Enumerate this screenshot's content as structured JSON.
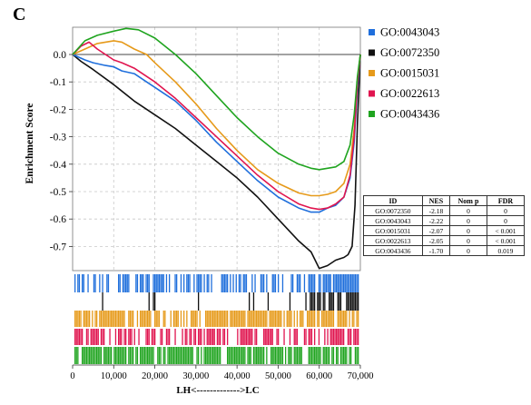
{
  "panel_label": "C",
  "chart_data": {
    "type": "line",
    "ylabel": "Enrichment Score",
    "xlabel": "LH<------------->LC",
    "xlim": [
      0,
      70000
    ],
    "ylim": [
      -0.8,
      0.1
    ],
    "y_ticks": [
      0.0,
      -0.1,
      -0.2,
      -0.3,
      -0.4,
      -0.5,
      -0.6,
      -0.7
    ],
    "y_tick_labels": [
      "0.0",
      "-0.1",
      "-0.2",
      "-0.3",
      "-0.4",
      "-0.5",
      "-0.6",
      "-0.7"
    ],
    "x_ticks": [
      0,
      10000,
      20000,
      30000,
      40000,
      50000,
      60000,
      70000
    ],
    "x_tick_labels": [
      "0",
      "10,000",
      "20,000",
      "30,000",
      "40,000",
      "50,000",
      "60,000",
      "70,000"
    ],
    "grid": true,
    "legend_position": "right",
    "series": [
      {
        "name": "GO:0043043",
        "color": "#1f6fdc",
        "x": [
          0,
          3000,
          5000,
          8000,
          10000,
          12000,
          15000,
          18000,
          20000,
          25000,
          30000,
          35000,
          40000,
          45000,
          50000,
          55000,
          58000,
          60000,
          62000,
          64000,
          66000,
          67500,
          68500,
          69300,
          70000
        ],
        "y": [
          0.0,
          -0.02,
          -0.03,
          -0.04,
          -0.045,
          -0.06,
          -0.07,
          -0.1,
          -0.12,
          -0.17,
          -0.24,
          -0.32,
          -0.39,
          -0.46,
          -0.52,
          -0.56,
          -0.575,
          -0.575,
          -0.56,
          -0.55,
          -0.52,
          -0.45,
          -0.32,
          -0.12,
          0.0
        ]
      },
      {
        "name": "GO:0072350",
        "color": "#111111",
        "x": [
          0,
          2000,
          5000,
          10000,
          15000,
          20000,
          25000,
          30000,
          35000,
          40000,
          45000,
          50000,
          55000,
          58000,
          60000,
          62000,
          64000,
          66000,
          67000,
          68000,
          68700,
          69300,
          70000
        ],
        "y": [
          0.0,
          -0.025,
          -0.055,
          -0.11,
          -0.17,
          -0.22,
          -0.27,
          -0.33,
          -0.39,
          -0.45,
          -0.52,
          -0.6,
          -0.68,
          -0.72,
          -0.78,
          -0.77,
          -0.75,
          -0.74,
          -0.73,
          -0.7,
          -0.55,
          -0.25,
          0.0
        ]
      },
      {
        "name": "GO:0015031",
        "color": "#e69a1a",
        "x": [
          0,
          3000,
          6000,
          8000,
          10000,
          12000,
          15000,
          18000,
          20000,
          25000,
          30000,
          35000,
          40000,
          45000,
          50000,
          55000,
          58000,
          60000,
          62000,
          64000,
          66000,
          67500,
          68500,
          69300,
          70000
        ],
        "y": [
          0.0,
          0.02,
          0.04,
          0.045,
          0.05,
          0.045,
          0.02,
          0.0,
          -0.03,
          -0.1,
          -0.18,
          -0.27,
          -0.35,
          -0.42,
          -0.47,
          -0.505,
          -0.515,
          -0.515,
          -0.51,
          -0.5,
          -0.47,
          -0.4,
          -0.27,
          -0.1,
          0.0
        ]
      },
      {
        "name": "GO:0022613",
        "color": "#e0154f",
        "x": [
          0,
          2000,
          4000,
          6000,
          8000,
          10000,
          12000,
          15000,
          20000,
          25000,
          30000,
          35000,
          40000,
          45000,
          50000,
          55000,
          58000,
          60000,
          62000,
          64000,
          66000,
          67500,
          68500,
          69300,
          70000
        ],
        "y": [
          0.0,
          0.03,
          0.045,
          0.02,
          0.0,
          -0.02,
          -0.03,
          -0.05,
          -0.1,
          -0.16,
          -0.23,
          -0.3,
          -0.37,
          -0.44,
          -0.5,
          -0.545,
          -0.56,
          -0.565,
          -0.56,
          -0.545,
          -0.52,
          -0.44,
          -0.3,
          -0.1,
          0.0
        ]
      },
      {
        "name": "GO:0043436",
        "color": "#1fa41f",
        "x": [
          0,
          3000,
          6000,
          10000,
          13000,
          16000,
          20000,
          25000,
          30000,
          35000,
          40000,
          45000,
          50000,
          55000,
          58000,
          60000,
          62000,
          64000,
          66000,
          67500,
          68500,
          69300,
          70000
        ],
        "y": [
          0.0,
          0.05,
          0.07,
          0.085,
          0.095,
          0.09,
          0.06,
          0.0,
          -0.07,
          -0.15,
          -0.23,
          -0.3,
          -0.36,
          -0.4,
          -0.415,
          -0.42,
          -0.415,
          -0.41,
          -0.39,
          -0.33,
          -0.22,
          -0.08,
          0.0
        ]
      }
    ],
    "table": {
      "headers": [
        "ID",
        "NES",
        "Nom p",
        "FDR"
      ],
      "rows": [
        [
          "GO:0072350",
          "-2.18",
          "0",
          "0"
        ],
        [
          "GO:0043043",
          "-2.22",
          "0",
          "0"
        ],
        [
          "GO:0015031",
          "-2.07",
          "0",
          "< 0.001"
        ],
        [
          "GO:0022613",
          "-2.05",
          "0",
          "< 0.001"
        ],
        [
          "GO:0043436",
          "-1.70",
          "0",
          "0.019"
        ]
      ]
    }
  }
}
